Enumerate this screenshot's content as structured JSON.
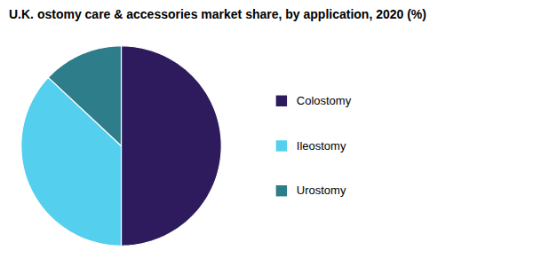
{
  "chart_data": {
    "type": "pie",
    "title": "U.K. ostomy care & accessories market share, by application, 2020 (%)",
    "categories": [
      "Colostomy",
      "Ileostomy",
      "Urostomy"
    ],
    "values": [
      50.0,
      37.0,
      13.0
    ],
    "colors": [
      "#2d1b5e",
      "#55cfee",
      "#2d7d8a"
    ],
    "legend": "right"
  }
}
